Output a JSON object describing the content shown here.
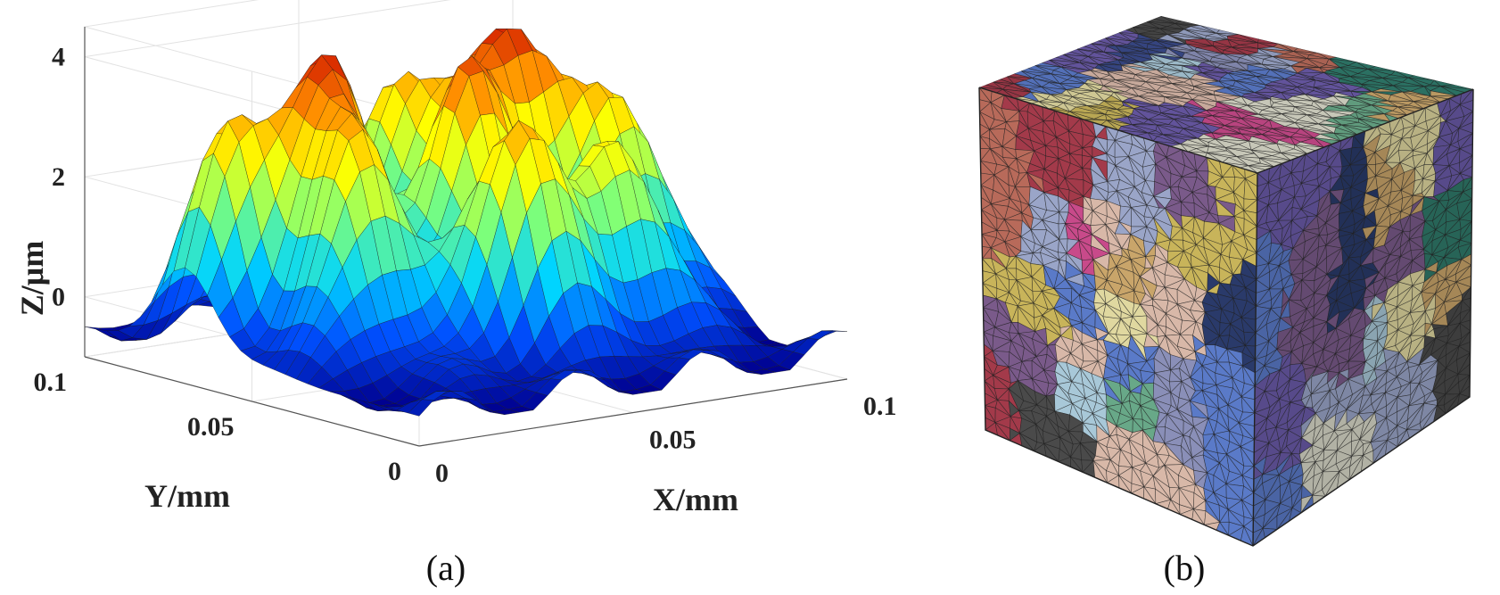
{
  "panels": {
    "a": "(a)",
    "b": "(b)"
  },
  "chart_data": [
    {
      "type": "surface",
      "panel_label": "(a)",
      "xlabel": "X/mm",
      "ylabel": "Y/mm",
      "zlabel": "Z/μm",
      "xlim": [
        0,
        0.1
      ],
      "ylim": [
        0,
        0.1
      ],
      "zlim": [
        -1,
        4.5
      ],
      "x_ticks": [
        {
          "value": 0,
          "label": "0"
        },
        {
          "value": 0.05,
          "label": "0.05"
        },
        {
          "value": 0.1,
          "label": "0.1"
        }
      ],
      "y_ticks": [
        {
          "value": 0,
          "label": "0"
        },
        {
          "value": 0.05,
          "label": "0.05"
        },
        {
          "value": 0.1,
          "label": "0.1"
        }
      ],
      "z_ticks": [
        {
          "value": 0,
          "label": "0"
        },
        {
          "value": 2,
          "label": "2"
        },
        {
          "value": 4,
          "label": "4"
        }
      ],
      "colormap": "jet",
      "colormap_stops": [
        "#00008f",
        "#0050ff",
        "#00d4ff",
        "#7dff7a",
        "#ffff00",
        "#ff8c00",
        "#c80000"
      ],
      "grid": true,
      "surface_grid": 30,
      "z_range": [
        -0.7,
        4.4
      ],
      "peaks": [
        {
          "x": 0.058,
          "y": 0.081,
          "z": 3.3
        },
        {
          "x": 0.03,
          "y": 0.065,
          "z": 3.9
        },
        {
          "x": 0.022,
          "y": 0.046,
          "z": 3.1
        },
        {
          "x": 0.072,
          "y": 0.064,
          "z": 3.7
        },
        {
          "x": 0.055,
          "y": 0.055,
          "z": 3.4
        },
        {
          "x": 0.087,
          "y": 0.05,
          "z": 2.8
        },
        {
          "x": 0.047,
          "y": 0.03,
          "z": 3.5
        },
        {
          "x": 0.07,
          "y": 0.03,
          "z": 2.7
        },
        {
          "x": 0.011,
          "y": 0.07,
          "z": 2.9
        },
        {
          "x": 0.089,
          "y": 0.078,
          "z": 2.2
        }
      ]
    },
    {
      "type": "mesh",
      "panel_label": "(b)",
      "grain_colors": [
        "#d8d8c8",
        "#8a8fb8",
        "#3a4a8a",
        "#c9a56a",
        "#6a5aa8",
        "#a33a4a",
        "#2f7a6a",
        "#c8b45a",
        "#9aa5c8",
        "#4a4a4a",
        "#7a5a8a",
        "#b86a5a",
        "#5a7ac8",
        "#e0d8a0",
        "#2a3a6a",
        "#a8c8d8",
        "#c84a8a",
        "#68a888",
        "#d8b8a8",
        "#38507a"
      ]
    }
  ]
}
